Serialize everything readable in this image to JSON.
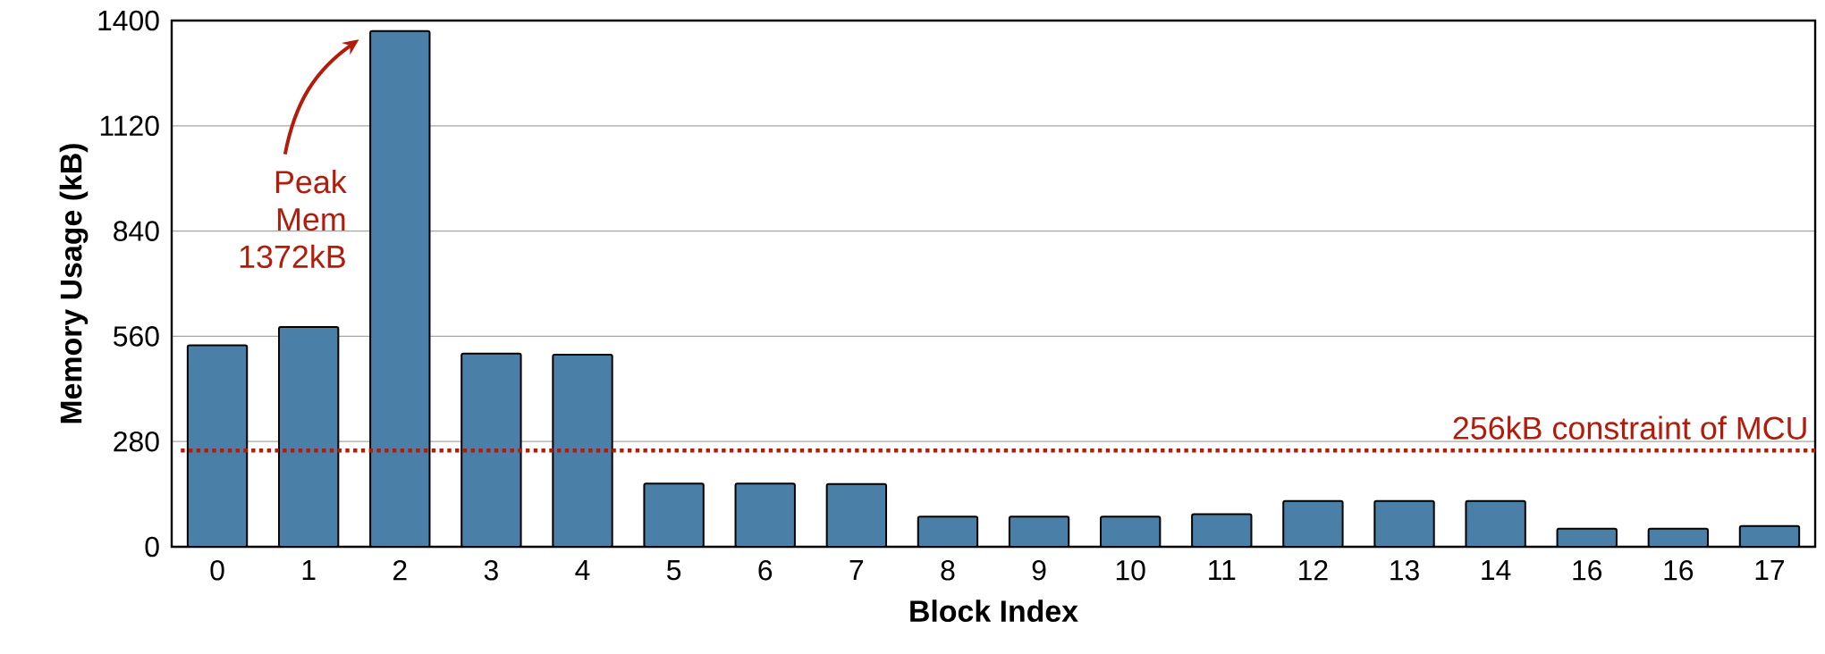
{
  "chart_data": {
    "type": "bar",
    "xlabel": "Block Index",
    "ylabel": "Memory Usage (kB)",
    "categories": [
      "0",
      "1",
      "2",
      "3",
      "4",
      "5",
      "6",
      "7",
      "8",
      "9",
      "10",
      "11",
      "12",
      "13",
      "14",
      "16",
      "16",
      "17"
    ],
    "values": [
      536,
      585,
      1372,
      514,
      511,
      168,
      168,
      167,
      80,
      80,
      80,
      87,
      122,
      122,
      122,
      48,
      48,
      55
    ],
    "color": "#4a7fa7",
    "ylim": [
      0,
      1400
    ],
    "yticks": [
      0,
      280,
      560,
      840,
      1120,
      1400
    ],
    "grid": "y",
    "ref_lines": [
      {
        "axis": "y",
        "value": 256,
        "label": "256kB constraint of MCU",
        "color": "#b31b0b",
        "line_style": "dotted"
      }
    ],
    "annotations": [
      "Peak Mem 1372kB"
    ]
  }
}
